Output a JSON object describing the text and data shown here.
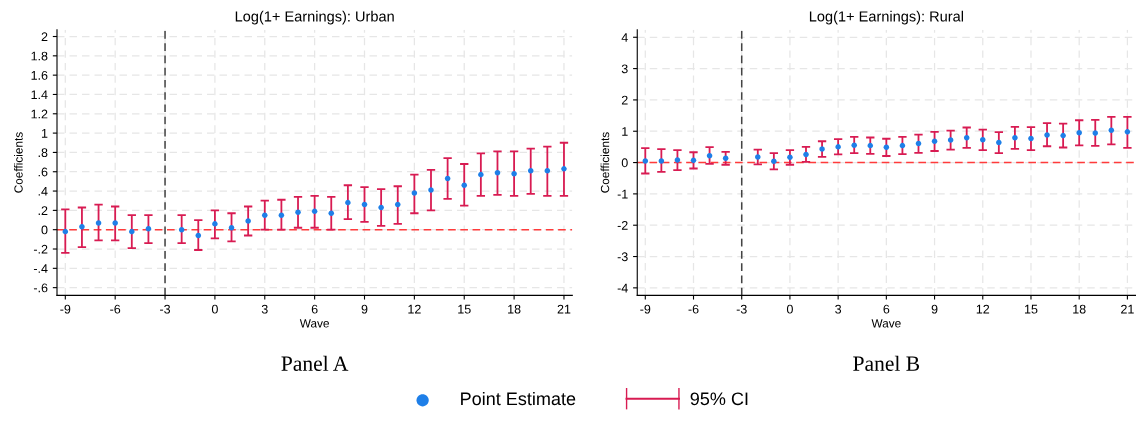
{
  "chart_data": [
    {
      "type": "scatter",
      "title": "Log(1+ Earnings): Urban",
      "xlabel": "Wave",
      "ylabel": "Coefficients",
      "x": [
        -9,
        -8,
        -7,
        -6,
        -5,
        -4,
        -2,
        -1,
        0,
        1,
        2,
        3,
        4,
        5,
        6,
        7,
        8,
        9,
        10,
        11,
        12,
        13,
        14,
        15,
        16,
        17,
        18,
        19,
        20,
        21
      ],
      "series": [
        {
          "name": "Point Estimate",
          "color": "#1e7fe8",
          "values": [
            -0.02,
            0.03,
            0.07,
            0.07,
            -0.02,
            0.01,
            0.0,
            -0.06,
            0.06,
            0.02,
            0.09,
            0.15,
            0.15,
            0.18,
            0.19,
            0.17,
            0.28,
            0.26,
            0.23,
            0.26,
            0.38,
            0.41,
            0.53,
            0.46,
            0.57,
            0.59,
            0.58,
            0.61,
            0.61,
            0.63
          ],
          "errors": [
            [
              -0.24,
              0.21
            ],
            [
              -0.18,
              0.23
            ],
            [
              -0.11,
              0.26
            ],
            [
              -0.11,
              0.24
            ],
            [
              -0.19,
              0.15
            ],
            [
              -0.14,
              0.15
            ],
            [
              -0.14,
              0.15
            ],
            [
              -0.21,
              0.1
            ],
            [
              -0.09,
              0.2
            ],
            [
              -0.12,
              0.17
            ],
            [
              -0.06,
              0.24
            ],
            [
              0.0,
              0.3
            ],
            [
              0.0,
              0.31
            ],
            [
              0.02,
              0.34
            ],
            [
              0.02,
              0.35
            ],
            [
              0.0,
              0.34
            ],
            [
              0.11,
              0.46
            ],
            [
              0.08,
              0.44
            ],
            [
              0.04,
              0.42
            ],
            [
              0.06,
              0.45
            ],
            [
              0.17,
              0.57
            ],
            [
              0.2,
              0.62
            ],
            [
              0.32,
              0.74
            ],
            [
              0.25,
              0.68
            ],
            [
              0.35,
              0.79
            ],
            [
              0.36,
              0.81
            ],
            [
              0.35,
              0.81
            ],
            [
              0.37,
              0.84
            ],
            [
              0.35,
              0.86
            ],
            [
              0.35,
              0.9
            ]
          ]
        }
      ],
      "xlim": [
        -9.5,
        21.5
      ],
      "xticks": [
        -9,
        -6,
        -3,
        0,
        3,
        6,
        9,
        12,
        15,
        18,
        21
      ],
      "ylim": [
        -0.68,
        2.07
      ],
      "yticks": [
        {
          "value": -0.6,
          "label": "-.6"
        },
        {
          "value": -0.4,
          "label": "-.4"
        },
        {
          "value": -0.2,
          "label": "-.2"
        },
        0,
        {
          "value": 0.2,
          "label": ".2"
        },
        {
          "value": 0.4,
          "label": ".4"
        },
        {
          "value": 0.6,
          "label": ".6"
        },
        {
          "value": 0.8,
          "label": ".8"
        },
        1,
        1.2,
        1.4,
        1.6,
        1.8,
        2
      ],
      "ref_lines": [
        {
          "axis": "x",
          "value": -3,
          "color": "#444444",
          "line_style": "dashed"
        },
        {
          "axis": "y",
          "value": 0,
          "color": "#ff3b3b",
          "line_style": "dashed"
        }
      ],
      "grid": true,
      "legend": "bottom",
      "annotations": [
        "Panel A",
        "95% CI"
      ]
    },
    {
      "type": "scatter",
      "title": "Log(1+ Earnings): Rural",
      "xlabel": "Wave",
      "ylabel": "Coefficients",
      "x": [
        -9,
        -8,
        -7,
        -6,
        -5,
        -4,
        -2,
        -1,
        0,
        1,
        2,
        3,
        4,
        5,
        6,
        7,
        8,
        9,
        10,
        11,
        12,
        13,
        14,
        15,
        16,
        17,
        18,
        19,
        20,
        21
      ],
      "series": [
        {
          "color": "#1e7fe8",
          "values": [
            0.05,
            0.05,
            0.08,
            0.07,
            0.22,
            0.14,
            0.18,
            0.04,
            0.17,
            0.26,
            0.43,
            0.5,
            0.55,
            0.54,
            0.49,
            0.54,
            0.61,
            0.68,
            0.72,
            0.79,
            0.73,
            0.64,
            0.79,
            0.77,
            0.88,
            0.86,
            0.95,
            0.94,
            1.03,
            0.98
          ],
          "errors": [
            [
              -0.35,
              0.46
            ],
            [
              -0.3,
              0.43
            ],
            [
              -0.24,
              0.4
            ],
            [
              -0.19,
              0.33
            ],
            [
              -0.04,
              0.49
            ],
            [
              -0.07,
              0.34
            ],
            [
              -0.06,
              0.41
            ],
            [
              -0.22,
              0.3
            ],
            [
              -0.07,
              0.4
            ],
            [
              0.02,
              0.5
            ],
            [
              0.18,
              0.68
            ],
            [
              0.26,
              0.75
            ],
            [
              0.3,
              0.82
            ],
            [
              0.28,
              0.8
            ],
            [
              0.21,
              0.76
            ],
            [
              0.27,
              0.82
            ],
            [
              0.31,
              0.89
            ],
            [
              0.37,
              0.98
            ],
            [
              0.41,
              1.02
            ],
            [
              0.47,
              1.12
            ],
            [
              0.4,
              1.05
            ],
            [
              0.3,
              0.97
            ],
            [
              0.44,
              1.14
            ],
            [
              0.4,
              1.13
            ],
            [
              0.52,
              1.26
            ],
            [
              0.48,
              1.24
            ],
            [
              0.55,
              1.35
            ],
            [
              0.53,
              1.36
            ],
            [
              0.58,
              1.46
            ],
            [
              0.47,
              1.46
            ]
          ]
        }
      ],
      "xlim": [
        -9.5,
        21.5
      ],
      "xticks": [
        -9,
        -6,
        -3,
        0,
        3,
        6,
        9,
        12,
        15,
        18,
        21
      ],
      "ylim": [
        -4.24,
        4.24
      ],
      "yticks": [
        -4,
        -3,
        -2,
        -1,
        0,
        1,
        2,
        3,
        4
      ],
      "ref_lines": [
        {
          "axis": "x",
          "value": -3,
          "color": "#444444",
          "line_style": "dashed"
        },
        {
          "axis": "y",
          "value": 0,
          "color": "#ff3b3b",
          "line_style": "dashed"
        }
      ],
      "grid": true,
      "annotations": [
        "Panel B"
      ]
    }
  ]
}
